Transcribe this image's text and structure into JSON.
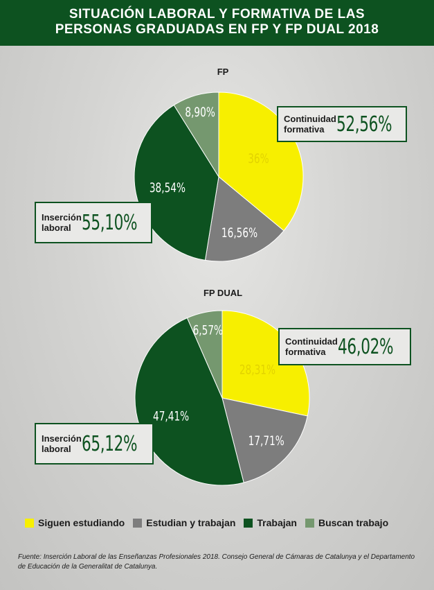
{
  "header": {
    "title_line1": "SITUACIÓN LABORAL Y FORMATIVA DE LAS",
    "title_line2": "PERSONAS GRADUADAS EN FP Y FP DUAL 2018"
  },
  "colors": {
    "siguen": "#f7ef00",
    "estudian": "#7d7d7d",
    "trabajan": "#0d5220",
    "buscan": "#75986f",
    "header_bg": "#0d5220"
  },
  "legend": [
    {
      "label": "Siguen estudiando",
      "color": "#f7ef00"
    },
    {
      "label": "Estudian y trabajan",
      "color": "#7d7d7d"
    },
    {
      "label": "Trabajan",
      "color": "#0d5220"
    },
    {
      "label": "Buscan trabajo",
      "color": "#75986f"
    }
  ],
  "chart_data": [
    {
      "type": "pie",
      "title": "FP",
      "categories": [
        "Siguen estudiando",
        "Estudian y trabajan",
        "Trabajan",
        "Buscan trabajo"
      ],
      "values": [
        36,
        16.56,
        38.54,
        8.9
      ],
      "value_labels": [
        "36%",
        "16,56%",
        "38,54%",
        "8,90%"
      ],
      "annotations": {
        "continuidad_label": [
          "Continuidad",
          "formativa"
        ],
        "continuidad_value": "52,56%",
        "insercion_label": [
          "Inserción",
          "laboral"
        ],
        "insercion_value": "55,10%"
      }
    },
    {
      "type": "pie",
      "title": "FP DUAL",
      "categories": [
        "Siguen estudiando",
        "Estudian y trabajan",
        "Trabajan",
        "Buscan trabajo"
      ],
      "values": [
        28.31,
        17.71,
        47.41,
        6.57
      ],
      "value_labels": [
        "28,31%",
        "17,71%",
        "47,41%",
        "6,57%"
      ],
      "annotations": {
        "continuidad_label": [
          "Continuidad",
          "formativa"
        ],
        "continuidad_value": "46,02%",
        "insercion_label": [
          "Inserción",
          "laboral"
        ],
        "insercion_value": "65,12%"
      }
    }
  ],
  "source": "Fuente: Inserción Laboral de las Enseñanzas Profesionales 2018. Consejo General de Cámaras de Catalunya y el Departamento de Educación de la Generalitat de Catalunya."
}
